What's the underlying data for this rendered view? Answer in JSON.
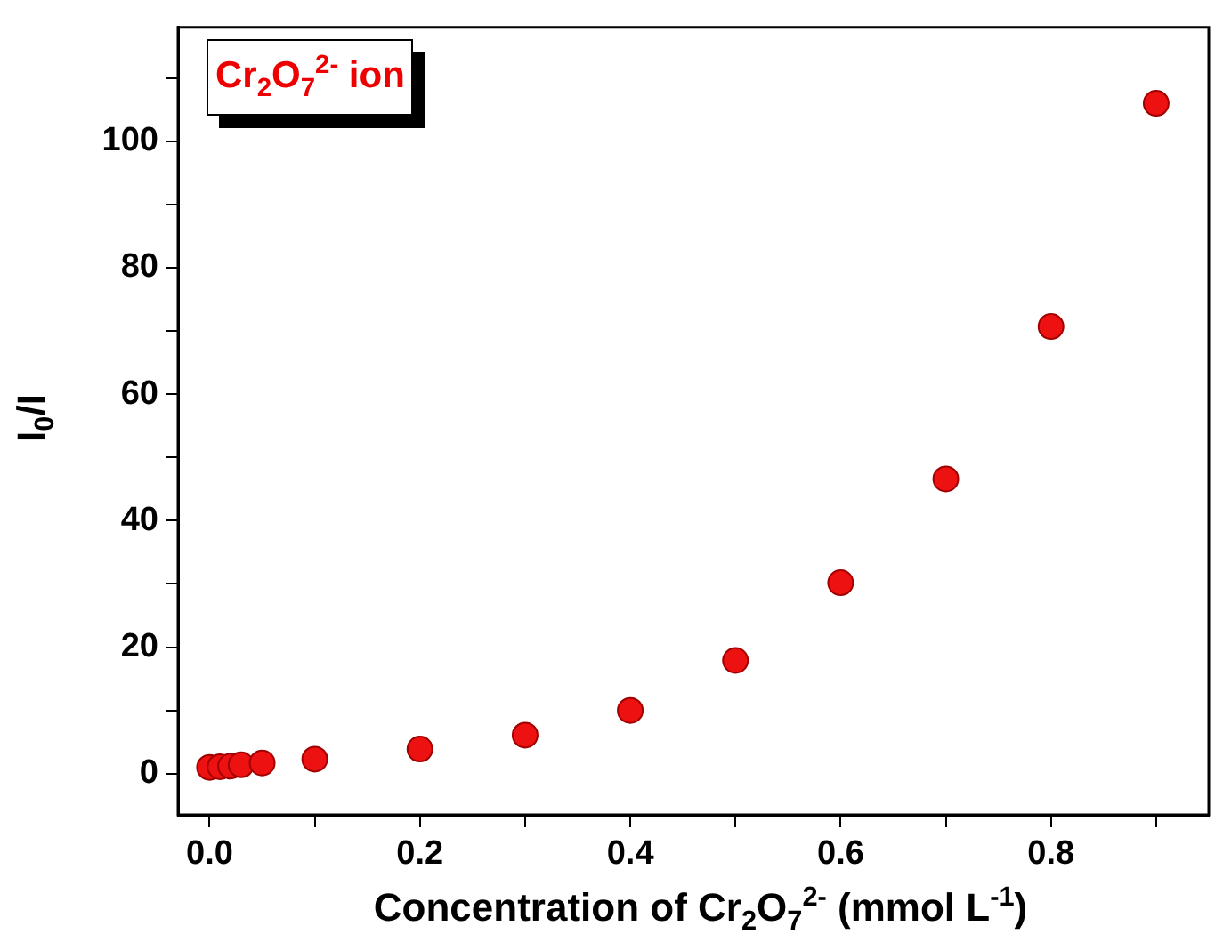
{
  "chart_data": {
    "type": "scatter",
    "xlabel": "Concentration of Cr$_{2}$O$_{7}$$^{2-}$ (mmol L$^{-1}$)",
    "ylabel": "I$_{0}$/I",
    "annotations": [
      "Cr$_{2}$O$_{7}$$^{2-}$ ion"
    ],
    "x": [
      0,
      0.01,
      0.02,
      0.03,
      0.05,
      0.1,
      0.2,
      0.3,
      0.4,
      0.5,
      0.6,
      0.7,
      0.8,
      0.9
    ],
    "series": [
      {
        "color": "#ee1111",
        "values": [
          1,
          1.1,
          1.2,
          1.4,
          1.7,
          2.3,
          3.9,
          6.1,
          10,
          17.9,
          30.2,
          46.6,
          70.7,
          106
        ]
      }
    ],
    "xlim": [
      -0.03,
      0.95
    ],
    "xticks": [
      {
        "value": 0,
        "label": "0.0"
      },
      {
        "value": 0.1,
        "label": null
      },
      {
        "value": 0.2,
        "label": "0.2"
      },
      {
        "value": 0.3,
        "label": null
      },
      {
        "value": 0.4,
        "label": "0.4"
      },
      {
        "value": 0.5,
        "label": null
      },
      {
        "value": 0.6,
        "label": "0.6"
      },
      {
        "value": 0.7,
        "label": null
      },
      {
        "value": 0.8,
        "label": "0.8"
      },
      {
        "value": 0.9,
        "label": null
      }
    ],
    "ylim": [
      -6.5,
      118
    ],
    "yticks": [
      0,
      {
        "value": 10,
        "label": null
      },
      20,
      {
        "value": 30,
        "label": null
      },
      40,
      {
        "value": 50,
        "label": null
      },
      60,
      {
        "value": 70,
        "label": null
      },
      80,
      {
        "value": 90,
        "label": null
      },
      100,
      {
        "value": 110,
        "label": null
      }
    ],
    "marker": "circle",
    "grid": false,
    "legend": false
  }
}
